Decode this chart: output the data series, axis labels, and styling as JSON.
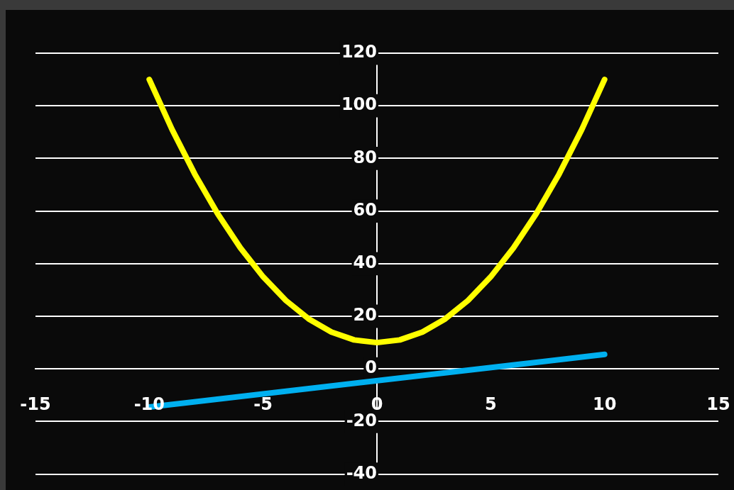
{
  "chart_data": {
    "type": "line",
    "x": [
      -10,
      -9,
      -8,
      -7,
      -6,
      -5,
      -4,
      -3,
      -2,
      -1,
      0,
      1,
      2,
      3,
      4,
      5,
      6,
      7,
      8,
      9,
      10
    ],
    "series": [
      {
        "color": "#ffff00",
        "values": [
          110,
          91,
          74,
          59,
          46,
          35,
          26,
          19,
          14,
          11,
          10,
          11,
          14,
          19,
          26,
          35,
          46,
          59,
          74,
          91,
          110
        ]
      },
      {
        "color": "#00b0f0",
        "x": [
          -10,
          10
        ],
        "values": [
          -14.5,
          5.5
        ]
      }
    ],
    "xlim": [
      -15,
      15
    ],
    "xticks": [
      -15,
      -10,
      -5,
      0,
      5,
      10,
      15
    ],
    "ylim": [
      -40,
      120
    ],
    "yticks": [
      -40,
      -20,
      0,
      20,
      40,
      60,
      80,
      100,
      120
    ],
    "grid": "y",
    "legend": false,
    "marker": "none",
    "line_style": "solid"
  }
}
